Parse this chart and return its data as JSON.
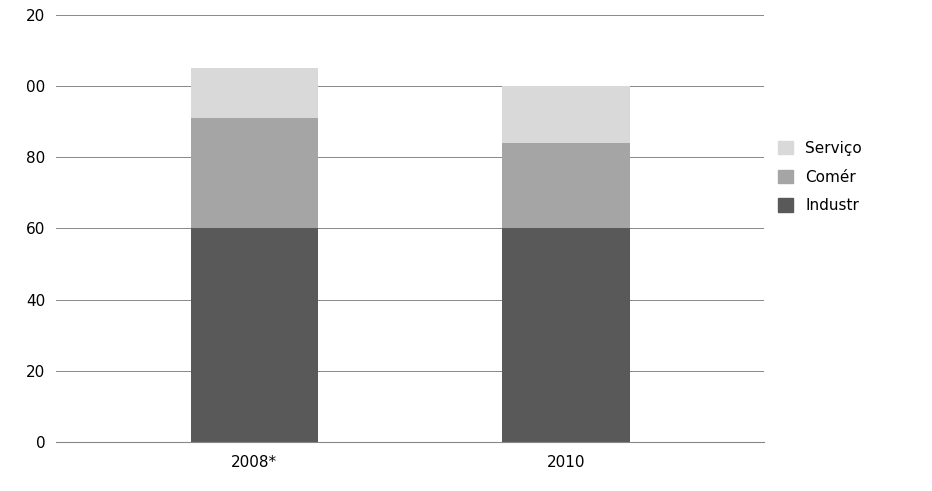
{
  "categories": [
    "2008*",
    "2010"
  ],
  "industria": [
    60,
    60
  ],
  "comercio": [
    31,
    24
  ],
  "servicos": [
    14,
    16
  ],
  "colors": {
    "industria": "#595959",
    "comercio": "#a5a5a5",
    "servicos": "#d9d9d9"
  },
  "ylim": [
    0,
    120
  ],
  "yticks": [
    0,
    20,
    40,
    60,
    80,
    100,
    120
  ],
  "ytick_labels": [
    "0",
    "20",
    "40",
    "60",
    "80",
    "00",
    "20"
  ],
  "bar_width": 0.18,
  "bar_positions": [
    0.28,
    0.72
  ],
  "xlim": [
    0,
    1.0
  ],
  "figsize": [
    9.32,
    4.91
  ],
  "dpi": 100,
  "background_color": "#ffffff",
  "legend_serv": "Serviço",
  "legend_com": "Comér",
  "legend_ind": "Industr"
}
